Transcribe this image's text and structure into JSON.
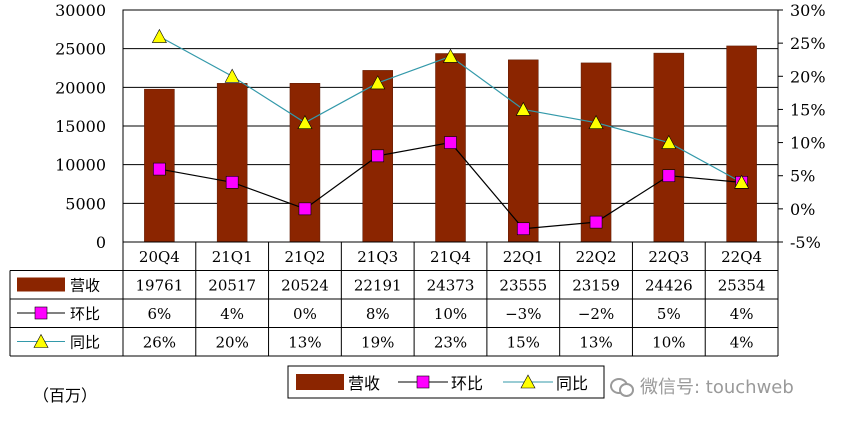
{
  "chart_data": {
    "type": "bar+line",
    "categories": [
      "20Q4",
      "21Q1",
      "21Q2",
      "21Q3",
      "21Q4",
      "22Q1",
      "22Q2",
      "22Q3",
      "22Q4"
    ],
    "series": [
      {
        "name": "营收",
        "type": "bar",
        "axis": "left",
        "color": "#8B2500",
        "values": [
          19761,
          20517,
          20524,
          22191,
          24373,
          23555,
          23159,
          24426,
          25354
        ]
      },
      {
        "name": "环比",
        "type": "line",
        "axis": "right",
        "color": "#FF00FF",
        "line_color": "#000000",
        "values": [
          6,
          4,
          0,
          8,
          10,
          -3,
          -2,
          5,
          4
        ]
      },
      {
        "name": "同比",
        "type": "line",
        "axis": "right",
        "color": "#FFFF00",
        "line_color": "#3399AA",
        "values": [
          26,
          20,
          13,
          19,
          23,
          15,
          13,
          10,
          4
        ]
      }
    ],
    "table_rows": [
      {
        "label": "营收",
        "cells": [
          "19761",
          "20517",
          "20524",
          "22191",
          "24373",
          "23555",
          "23159",
          "24426",
          "25354"
        ]
      },
      {
        "label": "环比",
        "cells": [
          "6%",
          "4%",
          "0%",
          "8%",
          "10%",
          "−3%",
          "−2%",
          "5%",
          "4%"
        ]
      },
      {
        "label": "同比",
        "cells": [
          "26%",
          "20%",
          "13%",
          "19%",
          "23%",
          "15%",
          "13%",
          "10%",
          "4%"
        ]
      }
    ],
    "left_axis": {
      "min": 0,
      "max": 30000,
      "ticks": [
        "0",
        "5000",
        "10000",
        "15000",
        "20000",
        "25000",
        "30000"
      ]
    },
    "right_axis": {
      "min": -5,
      "max": 30,
      "ticks": [
        "-5%",
        "0%",
        "5%",
        "10%",
        "15%",
        "20%",
        "25%",
        "30%"
      ]
    },
    "grid": true,
    "legend": {
      "placement": "bottom",
      "items": [
        "营收",
        "环比",
        "同比"
      ]
    },
    "unit_label": "（百万）"
  },
  "watermark": "微信号: touchweb"
}
